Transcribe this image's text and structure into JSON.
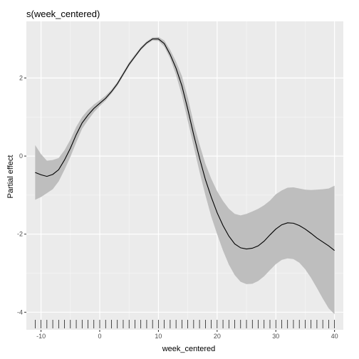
{
  "chart_data": {
    "type": "line",
    "title": "s(week_centered)",
    "xlabel": "week_centered",
    "ylabel": "Partial effect",
    "xlim": [
      -12.5,
      41.5
    ],
    "ylim": [
      -4.45,
      3.45
    ],
    "x_ticks": [
      -10,
      0,
      10,
      20,
      30,
      40
    ],
    "x_tick_labels": [
      "-10",
      "0",
      "10",
      "20",
      "30",
      "40"
    ],
    "y_ticks": [
      -4,
      -2,
      0,
      2
    ],
    "y_tick_labels": [
      "-4",
      "-2",
      "0",
      "2"
    ],
    "grid": true,
    "rug": [
      -11,
      -10,
      -9,
      -8,
      -7,
      -6,
      -5,
      -4,
      -3,
      -2,
      -1,
      0,
      1,
      2,
      3,
      4,
      5,
      6,
      7,
      8,
      9,
      10,
      11,
      12,
      13,
      14,
      15,
      16,
      17,
      18,
      19,
      20,
      21,
      22,
      23,
      24,
      25,
      26,
      27,
      28,
      29,
      30,
      31,
      32,
      33,
      34,
      35,
      36,
      37,
      38,
      39,
      40
    ],
    "series": [
      {
        "x": [
          -11,
          -10,
          -9,
          -8,
          -7,
          -6,
          -5,
          -4,
          -3,
          -2,
          -1,
          0,
          1,
          2,
          3,
          4,
          5,
          6,
          7,
          8,
          9,
          10,
          11,
          12,
          13,
          14,
          15,
          16,
          17,
          18,
          19,
          20,
          21,
          22,
          23,
          24,
          25,
          26,
          27,
          28,
          29,
          30,
          31,
          32,
          33,
          34,
          35,
          36,
          37,
          38,
          39,
          40
        ],
        "values": [
          -0.42,
          -0.48,
          -0.52,
          -0.47,
          -0.35,
          -0.1,
          0.2,
          0.55,
          0.85,
          1.05,
          1.22,
          1.35,
          1.48,
          1.65,
          1.85,
          2.1,
          2.35,
          2.55,
          2.75,
          2.9,
          3.0,
          3.0,
          2.88,
          2.6,
          2.25,
          1.8,
          1.2,
          0.55,
          -0.05,
          -0.6,
          -1.05,
          -1.45,
          -1.78,
          -2.05,
          -2.25,
          -2.35,
          -2.38,
          -2.36,
          -2.3,
          -2.18,
          -2.02,
          -1.87,
          -1.76,
          -1.71,
          -1.72,
          -1.78,
          -1.87,
          -1.98,
          -2.1,
          -2.2,
          -2.3,
          -2.42
        ],
        "lower": [
          -1.12,
          -1.05,
          -0.95,
          -0.85,
          -0.65,
          -0.35,
          -0.02,
          0.35,
          0.7,
          0.92,
          1.12,
          1.28,
          1.42,
          1.6,
          1.8,
          2.05,
          2.3,
          2.51,
          2.71,
          2.86,
          2.96,
          2.95,
          2.8,
          2.5,
          2.08,
          1.55,
          0.9,
          0.25,
          -0.4,
          -1.0,
          -1.55,
          -2.0,
          -2.42,
          -2.78,
          -3.05,
          -3.22,
          -3.28,
          -3.27,
          -3.2,
          -3.08,
          -2.92,
          -2.77,
          -2.66,
          -2.62,
          -2.64,
          -2.73,
          -2.9,
          -3.12,
          -3.38,
          -3.65,
          -3.9,
          -4.05
        ],
        "upper": [
          0.28,
          0.05,
          -0.12,
          -0.1,
          -0.05,
          0.15,
          0.42,
          0.75,
          1.0,
          1.18,
          1.32,
          1.43,
          1.55,
          1.7,
          1.9,
          2.15,
          2.4,
          2.6,
          2.79,
          2.94,
          3.04,
          3.05,
          2.96,
          2.72,
          2.42,
          2.05,
          1.5,
          0.85,
          0.3,
          -0.2,
          -0.58,
          -0.9,
          -1.15,
          -1.35,
          -1.48,
          -1.52,
          -1.48,
          -1.42,
          -1.35,
          -1.26,
          -1.14,
          -0.98,
          -0.88,
          -0.81,
          -0.8,
          -0.83,
          -0.86,
          -0.87,
          -0.86,
          -0.85,
          -0.83,
          -0.76
        ]
      }
    ]
  }
}
